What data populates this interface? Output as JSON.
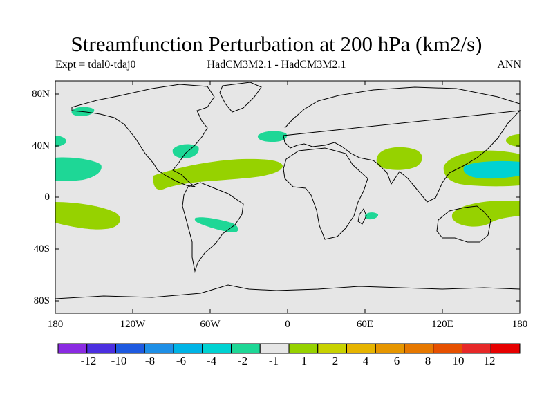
{
  "title": "Streamfunction Perturbation at 200 hPa (km2/s)",
  "subtitle_left": "Expt = tdal0-tdaj0",
  "subtitle_center": "HadCM3M2.1 - HadCM3M2.1",
  "subtitle_right": "ANN",
  "lat_labels": [
    "80N",
    "40N",
    "0",
    "40S",
    "80S"
  ],
  "lon_labels": [
    "180",
    "120W",
    "60W",
    "0",
    "60E",
    "120E",
    "180"
  ],
  "colorbar": {
    "colors": [
      "#8a2be2",
      "#4b2fe0",
      "#1e5ae0",
      "#1e8fe6",
      "#00b4e6",
      "#00d2d2",
      "#1ed796",
      "#e6e6e6",
      "#96d200",
      "#c8d200",
      "#e6b400",
      "#e69600",
      "#e67800",
      "#e65000",
      "#e62828",
      "#e60000"
    ],
    "labels": [
      "-12",
      "-10",
      "-8",
      "-6",
      "-4",
      "-2",
      "-1",
      "1",
      "2",
      "4",
      "6",
      "8",
      "10",
      "12"
    ]
  },
  "colors": {
    "background": "#e6e6e6",
    "positive_light": "#96d200",
    "negative_light": "#1ed796",
    "negative_mid": "#00d2d2"
  }
}
